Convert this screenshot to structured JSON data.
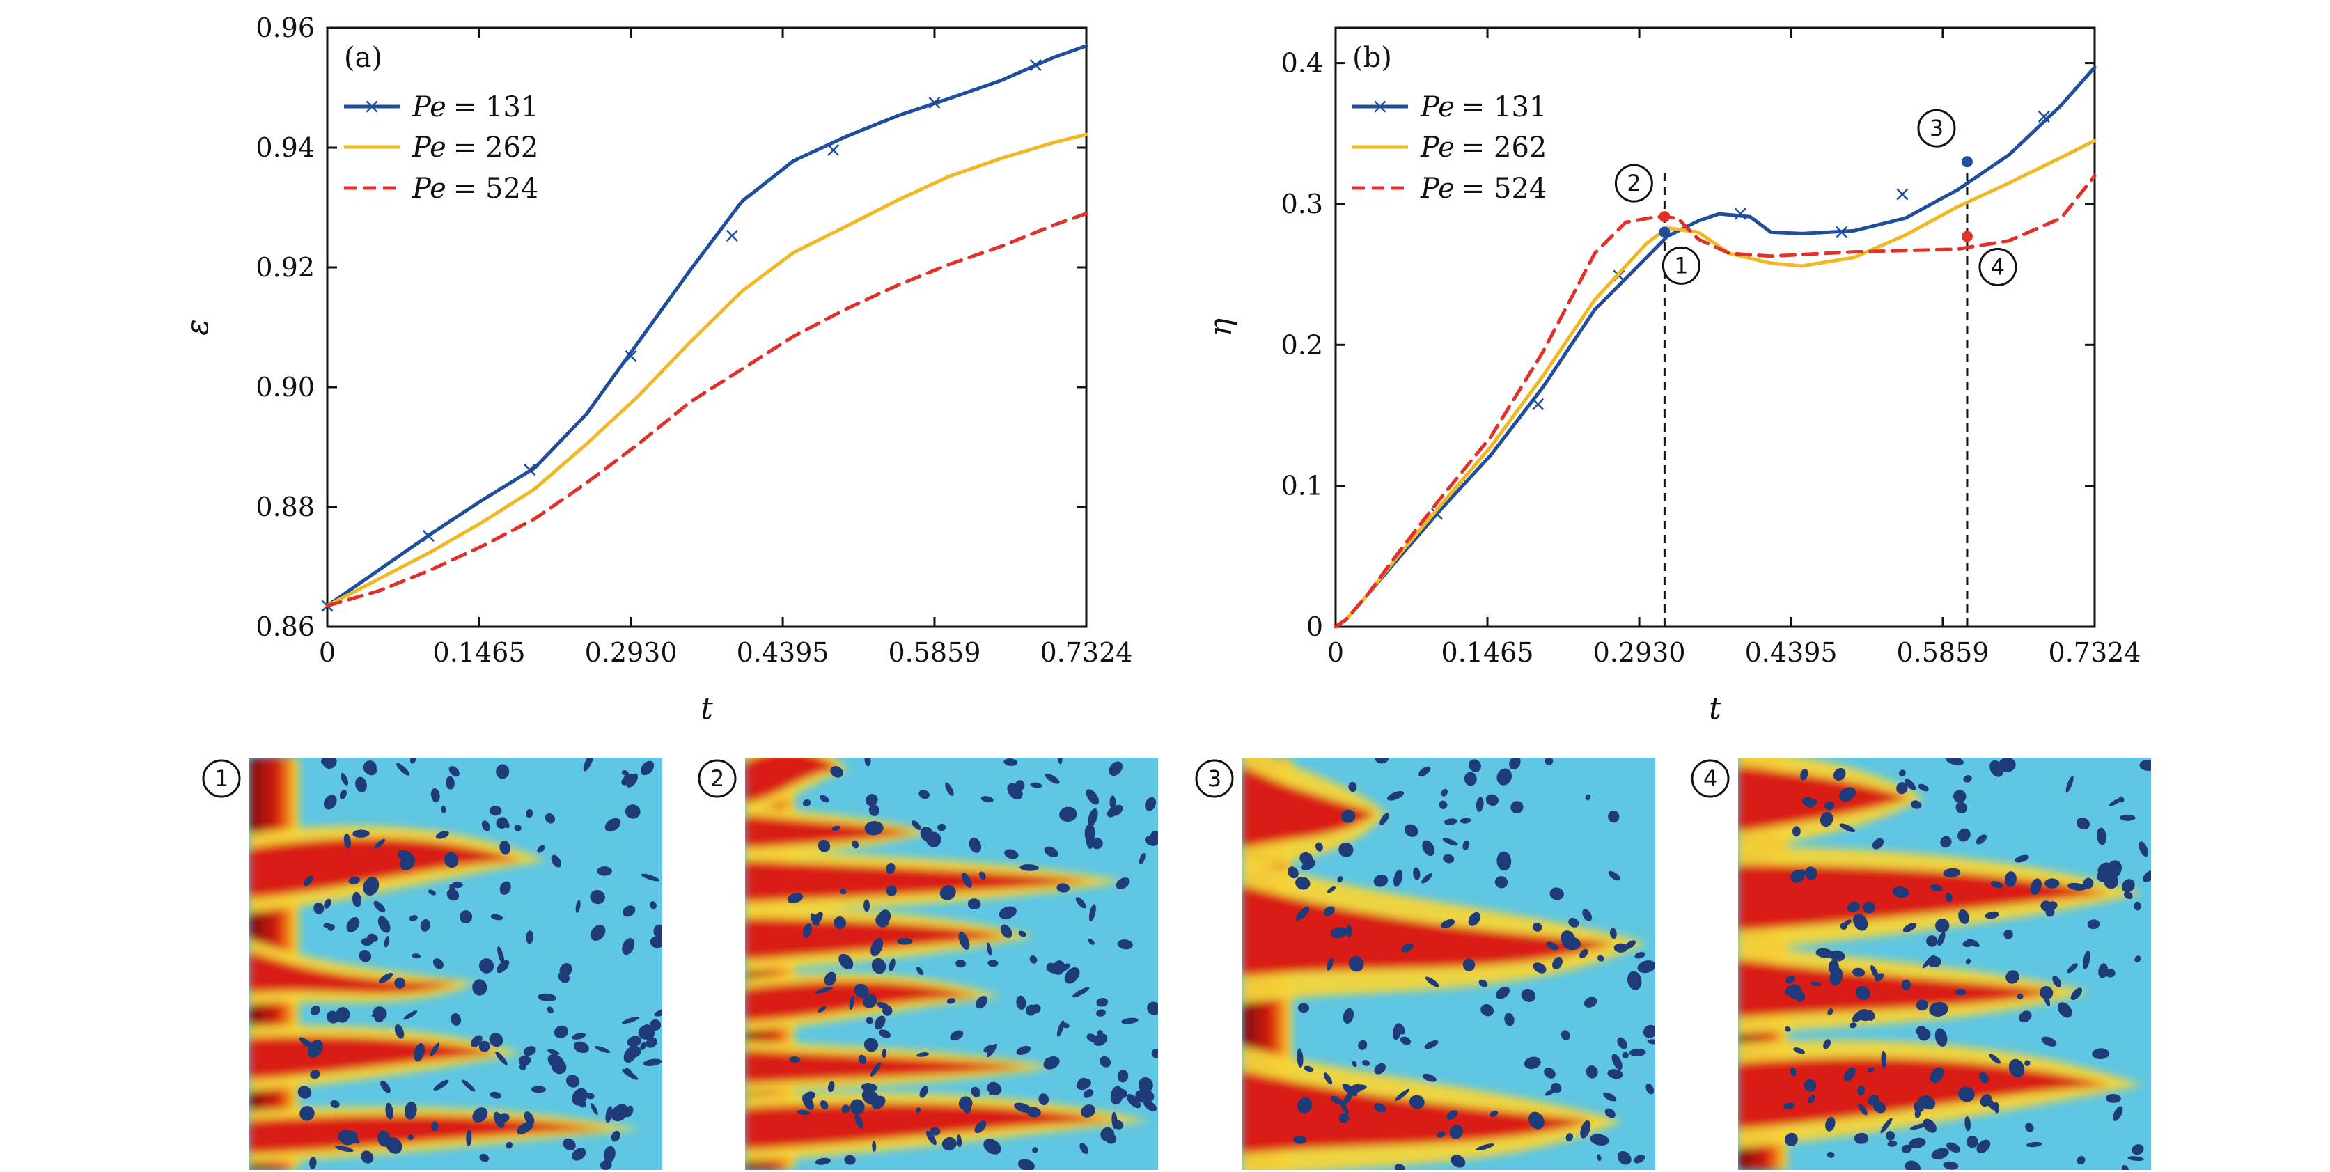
{
  "colors": {
    "pe131": "#1f4e9c",
    "pe262": "#f2b824",
    "pe524": "#e0312b",
    "solid": "#3a1f8a",
    "fluid": "#5fc6e3",
    "front": "#c40f0f"
  },
  "chart_data": [
    {
      "type": "line",
      "panel_label": "(a)",
      "xlabel": "t",
      "ylabel": "ε",
      "xlim": [
        0,
        0.7324
      ],
      "ylim": [
        0.86,
        0.96
      ],
      "xticks": [
        0,
        0.1465,
        0.293,
        0.4395,
        0.5859,
        0.7324
      ],
      "xtick_labels": [
        "0",
        "0.1465",
        "0.2930",
        "0.4395",
        "0.5859",
        "0.7324"
      ],
      "yticks": [
        0.86,
        0.88,
        0.9,
        0.92,
        0.94,
        0.96
      ],
      "ytick_labels": [
        "0.86",
        "0.88",
        "0.90",
        "0.92",
        "0.94",
        "0.96"
      ],
      "legend_position": "top-left",
      "series": [
        {
          "name": "Pe = 131",
          "legend_math": "Pe",
          "legend_value": "= 131",
          "style": "solid-x",
          "x": [
            0,
            0.05,
            0.1,
            0.15,
            0.2,
            0.25,
            0.3,
            0.35,
            0.4,
            0.45,
            0.5,
            0.55,
            0.6,
            0.65,
            0.7,
            0.7324
          ],
          "y": [
            0.8635,
            0.8695,
            0.8755,
            0.8812,
            0.8865,
            0.8955,
            0.9075,
            0.9195,
            0.931,
            0.9378,
            0.9418,
            0.9453,
            0.9482,
            0.9512,
            0.955,
            0.957
          ],
          "markers_x": [
            0.0,
            0.0977,
            0.1953,
            0.293,
            0.3906,
            0.4883,
            0.5859,
            0.6836
          ],
          "markers_y": [
            0.8635,
            0.8752,
            0.8862,
            0.9052,
            0.9253,
            0.9396,
            0.9475,
            0.9538
          ]
        },
        {
          "name": "Pe = 262",
          "legend_math": "Pe",
          "legend_value": "= 262",
          "style": "solid",
          "x": [
            0,
            0.05,
            0.1,
            0.15,
            0.2,
            0.25,
            0.3,
            0.35,
            0.4,
            0.45,
            0.5,
            0.55,
            0.6,
            0.65,
            0.7,
            0.7324
          ],
          "y": [
            0.8635,
            0.868,
            0.8725,
            0.8775,
            0.883,
            0.8905,
            0.8985,
            0.9075,
            0.916,
            0.9225,
            0.9268,
            0.9312,
            0.9352,
            0.9382,
            0.9408,
            0.9422
          ]
        },
        {
          "name": "Pe = 524",
          "legend_math": "Pe",
          "legend_value": "= 524",
          "style": "dashed",
          "x": [
            0,
            0.05,
            0.1,
            0.15,
            0.2,
            0.25,
            0.3,
            0.35,
            0.4,
            0.45,
            0.5,
            0.55,
            0.6,
            0.65,
            0.7,
            0.7324
          ],
          "y": [
            0.8635,
            0.866,
            0.8695,
            0.8735,
            0.878,
            0.884,
            0.8905,
            0.8975,
            0.903,
            0.9085,
            0.913,
            0.917,
            0.9205,
            0.9235,
            0.927,
            0.929
          ]
        }
      ]
    },
    {
      "type": "line",
      "panel_label": "(b)",
      "xlabel": "t",
      "ylabel": "η",
      "xlim": [
        0,
        0.7324
      ],
      "ylim": [
        0,
        0.425
      ],
      "xticks": [
        0,
        0.1465,
        0.293,
        0.4395,
        0.5859,
        0.7324
      ],
      "xtick_labels": [
        "0",
        "0.1465",
        "0.2930",
        "0.4395",
        "0.5859",
        "0.7324"
      ],
      "yticks": [
        0,
        0.1,
        0.2,
        0.3,
        0.4
      ],
      "ytick_labels": [
        "0",
        "0.1",
        "0.2",
        "0.3",
        "0.4"
      ],
      "legend_position": "top-left",
      "series": [
        {
          "name": "Pe = 131",
          "legend_math": "Pe",
          "legend_value": "= 131",
          "style": "solid-x",
          "x": [
            0,
            0.01,
            0.03,
            0.06,
            0.1,
            0.15,
            0.2,
            0.25,
            0.3,
            0.32,
            0.35,
            0.37,
            0.4,
            0.42,
            0.45,
            0.5,
            0.55,
            0.6,
            0.65,
            0.7,
            0.7324
          ],
          "y": [
            0,
            0.005,
            0.022,
            0.048,
            0.082,
            0.122,
            0.17,
            0.225,
            0.262,
            0.277,
            0.288,
            0.293,
            0.291,
            0.28,
            0.279,
            0.281,
            0.29,
            0.31,
            0.335,
            0.37,
            0.397
          ],
          "markers_x": [
            0.0977,
            0.1953,
            0.2734,
            0.3906,
            0.4883,
            0.5469,
            0.6836
          ],
          "markers_y": [
            0.08,
            0.158,
            0.249,
            0.293,
            0.28,
            0.307,
            0.362
          ]
        },
        {
          "name": "Pe = 262",
          "legend_math": "Pe",
          "legend_value": "= 262",
          "style": "solid",
          "x": [
            0,
            0.01,
            0.03,
            0.06,
            0.1,
            0.15,
            0.2,
            0.25,
            0.3,
            0.32,
            0.35,
            0.38,
            0.42,
            0.45,
            0.5,
            0.55,
            0.6,
            0.65,
            0.7,
            0.7324
          ],
          "y": [
            0,
            0.005,
            0.022,
            0.05,
            0.085,
            0.128,
            0.178,
            0.232,
            0.272,
            0.283,
            0.28,
            0.265,
            0.258,
            0.256,
            0.262,
            0.278,
            0.298,
            0.315,
            0.333,
            0.345
          ]
        },
        {
          "name": "Pe = 524",
          "legend_math": "Pe",
          "legend_value": "= 524",
          "style": "dashed",
          "x": [
            0,
            0.01,
            0.03,
            0.06,
            0.1,
            0.15,
            0.2,
            0.25,
            0.28,
            0.31,
            0.33,
            0.35,
            0.38,
            0.42,
            0.5,
            0.55,
            0.6,
            0.65,
            0.7,
            0.7324
          ],
          "y": [
            0,
            0.005,
            0.022,
            0.052,
            0.09,
            0.135,
            0.195,
            0.265,
            0.287,
            0.291,
            0.29,
            0.275,
            0.265,
            0.263,
            0.266,
            0.267,
            0.268,
            0.274,
            0.29,
            0.32
          ]
        }
      ],
      "guides": [
        {
          "x": 0.3174,
          "dashed_vertical": true
        },
        {
          "x": 0.6094,
          "dashed_vertical": true
        }
      ],
      "markers": [
        {
          "id": "1",
          "x": 0.3174,
          "y": 0.28,
          "series": "Pe = 131",
          "label": "1"
        },
        {
          "id": "2",
          "x": 0.3174,
          "y": 0.291,
          "series": "Pe = 524",
          "label": "2"
        },
        {
          "id": "3",
          "x": 0.6094,
          "y": 0.33,
          "series": "Pe = 131",
          "label": "3"
        },
        {
          "id": "4",
          "x": 0.6094,
          "y": 0.277,
          "series": "Pe = 524",
          "label": "4"
        }
      ]
    }
  ],
  "snapshots": [
    {
      "label": "1",
      "kind": "concentration-field"
    },
    {
      "label": "2",
      "kind": "concentration-field"
    },
    {
      "label": "3",
      "kind": "concentration-field"
    },
    {
      "label": "4",
      "kind": "concentration-field"
    }
  ]
}
